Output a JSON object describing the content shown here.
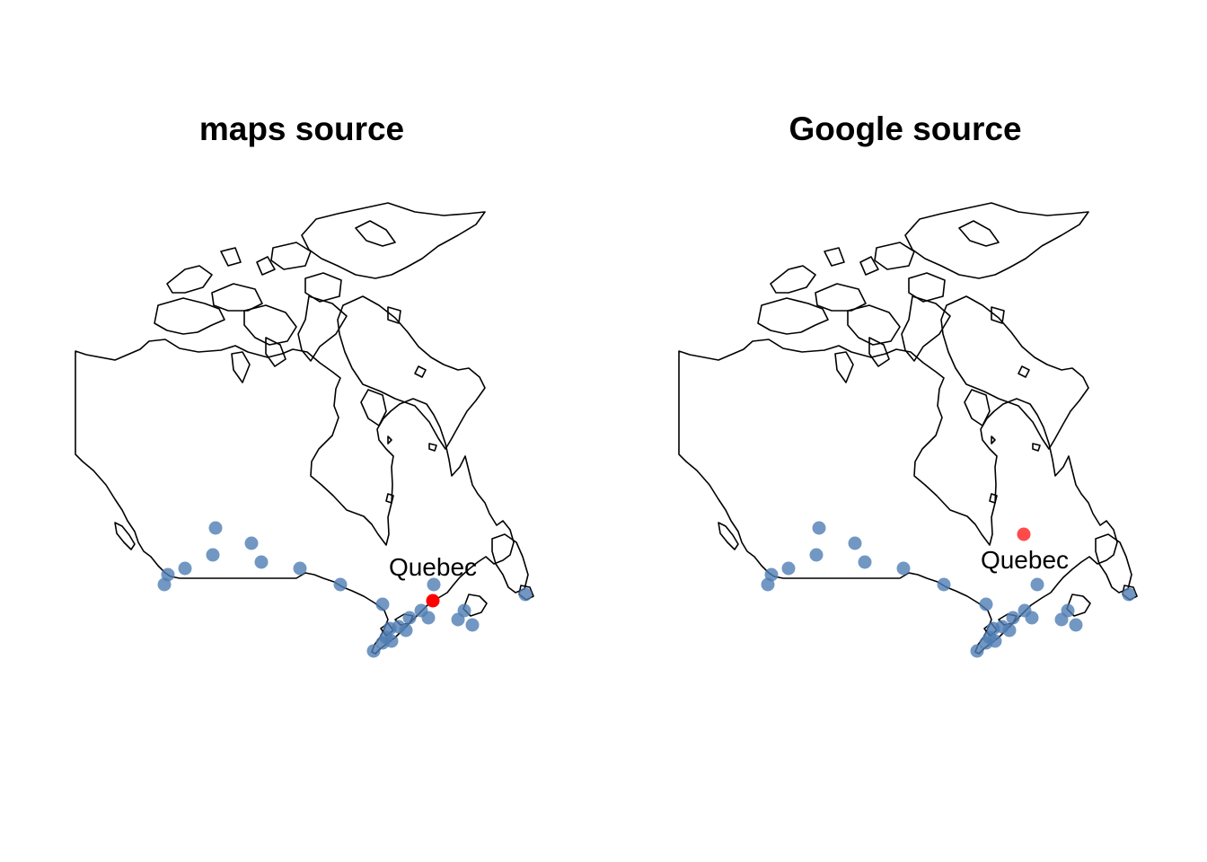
{
  "panels": [
    {
      "title": "maps source",
      "highlight": {
        "label": "Quebec",
        "lon": -71.2,
        "lat": 46.8,
        "color": "#ff0000"
      }
    },
    {
      "title": "Google source",
      "highlight": {
        "label": "Quebec",
        "lon": -71.7,
        "lat": 52.9,
        "color": "#ff2a2a"
      }
    }
  ],
  "cities_color": "#4f7db3",
  "outline_color": "#000000"
}
